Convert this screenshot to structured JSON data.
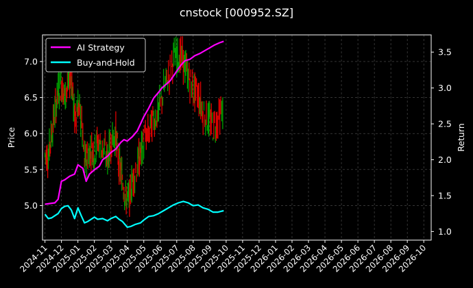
{
  "chart_data": {
    "type": "line",
    "title": "cnstock [000952.SZ]",
    "ylabel_left": "Price",
    "ylabel_right": "Return",
    "x_tick_labels": [
      "2024-11",
      "2024-12",
      "2025-01",
      "2025-02",
      "2025-03",
      "2025-04",
      "2025-05",
      "2025-06",
      "2025-07",
      "2025-08",
      "2025-09",
      "2025-10",
      "2025-11",
      "2025-12",
      "2026-01",
      "2026-02",
      "2026-03",
      "2026-04",
      "2026-05",
      "2026-06",
      "2026-07",
      "2026-08",
      "2026-09",
      "2026-10"
    ],
    "y_left_ticks": [
      "5.0",
      "5.5",
      "6.0",
      "6.5",
      "7.0"
    ],
    "y_left_lim": [
      4.52,
      7.37
    ],
    "y_right_ticks": [
      "1.0",
      "1.5",
      "2.0",
      "2.5",
      "3.0",
      "3.5"
    ],
    "y_right_lim": [
      0.88,
      3.74
    ],
    "x_lim_months": [
      -0.15,
      23.45
    ],
    "grid": true,
    "legend_position": "top-left",
    "series": [
      {
        "name": "AI Strategy",
        "axis": "right",
        "color": "#ff00ff",
        "points": [
          [
            0,
            1.38
          ],
          [
            0.3,
            1.39
          ],
          [
            0.6,
            1.4
          ],
          [
            0.8,
            1.45
          ],
          [
            1.0,
            1.7
          ],
          [
            1.2,
            1.72
          ],
          [
            1.5,
            1.77
          ],
          [
            1.8,
            1.8
          ],
          [
            2.0,
            1.93
          ],
          [
            2.3,
            1.88
          ],
          [
            2.5,
            1.7
          ],
          [
            2.7,
            1.8
          ],
          [
            3.0,
            1.86
          ],
          [
            3.3,
            1.91
          ],
          [
            3.5,
            2.0
          ],
          [
            3.8,
            2.05
          ],
          [
            4.0,
            2.1
          ],
          [
            4.3,
            2.15
          ],
          [
            4.6,
            2.24
          ],
          [
            4.8,
            2.28
          ],
          [
            5.0,
            2.26
          ],
          [
            5.3,
            2.32
          ],
          [
            5.6,
            2.4
          ],
          [
            5.8,
            2.5
          ],
          [
            6.0,
            2.6
          ],
          [
            6.3,
            2.72
          ],
          [
            6.6,
            2.86
          ],
          [
            6.9,
            2.94
          ],
          [
            7.1,
            3.0
          ],
          [
            7.4,
            3.06
          ],
          [
            7.6,
            3.1
          ],
          [
            7.9,
            3.2
          ],
          [
            8.1,
            3.27
          ],
          [
            8.3,
            3.33
          ],
          [
            8.5,
            3.38
          ],
          [
            8.8,
            3.4
          ],
          [
            9.1,
            3.45
          ],
          [
            9.4,
            3.48
          ],
          [
            9.7,
            3.52
          ],
          [
            10.0,
            3.56
          ],
          [
            10.3,
            3.6
          ],
          [
            10.6,
            3.63
          ],
          [
            10.85,
            3.65
          ]
        ]
      },
      {
        "name": "Buy-and-Hold",
        "axis": "right",
        "color": "#00ffff",
        "points": [
          [
            0,
            1.24
          ],
          [
            0.2,
            1.18
          ],
          [
            0.4,
            1.19
          ],
          [
            0.6,
            1.22
          ],
          [
            0.8,
            1.25
          ],
          [
            1.0,
            1.32
          ],
          [
            1.2,
            1.35
          ],
          [
            1.4,
            1.36
          ],
          [
            1.6,
            1.3
          ],
          [
            1.8,
            1.18
          ],
          [
            2.0,
            1.33
          ],
          [
            2.2,
            1.22
          ],
          [
            2.4,
            1.12
          ],
          [
            2.6,
            1.14
          ],
          [
            2.8,
            1.17
          ],
          [
            3.0,
            1.2
          ],
          [
            3.2,
            1.17
          ],
          [
            3.5,
            1.18
          ],
          [
            3.8,
            1.15
          ],
          [
            4.0,
            1.18
          ],
          [
            4.3,
            1.21
          ],
          [
            4.5,
            1.17
          ],
          [
            4.7,
            1.14
          ],
          [
            5.0,
            1.06
          ],
          [
            5.2,
            1.07
          ],
          [
            5.5,
            1.1
          ],
          [
            5.8,
            1.12
          ],
          [
            6.0,
            1.16
          ],
          [
            6.3,
            1.21
          ],
          [
            6.6,
            1.22
          ],
          [
            6.9,
            1.25
          ],
          [
            7.2,
            1.29
          ],
          [
            7.5,
            1.33
          ],
          [
            7.8,
            1.37
          ],
          [
            8.1,
            1.4
          ],
          [
            8.4,
            1.42
          ],
          [
            8.7,
            1.4
          ],
          [
            9.0,
            1.36
          ],
          [
            9.3,
            1.37
          ],
          [
            9.6,
            1.33
          ],
          [
            9.9,
            1.31
          ],
          [
            10.2,
            1.27
          ],
          [
            10.5,
            1.27
          ],
          [
            10.85,
            1.29
          ]
        ]
      }
    ],
    "price_series": {
      "name": "Price",
      "axis": "left",
      "color_up": "#00a000",
      "color_down": "#e00000",
      "points": [
        [
          0,
          5.7
        ],
        [
          0.2,
          5.7
        ],
        [
          0.4,
          6.0
        ],
        [
          0.6,
          6.3
        ],
        [
          0.8,
          6.6
        ],
        [
          1.0,
          6.7
        ],
        [
          1.2,
          6.5
        ],
        [
          1.4,
          6.7
        ],
        [
          1.6,
          6.8
        ],
        [
          1.8,
          6.2
        ],
        [
          2.0,
          6.4
        ],
        [
          2.2,
          6.2
        ],
        [
          2.4,
          5.6
        ],
        [
          2.6,
          5.7
        ],
        [
          2.8,
          5.8
        ],
        [
          3.0,
          5.75
        ],
        [
          3.2,
          5.9
        ],
        [
          3.5,
          5.8
        ],
        [
          3.8,
          5.65
        ],
        [
          4.0,
          5.9
        ],
        [
          4.3,
          6.0
        ],
        [
          4.5,
          5.55
        ],
        [
          4.7,
          5.4
        ],
        [
          4.9,
          5.1
        ],
        [
          5.1,
          5.1
        ],
        [
          5.3,
          5.35
        ],
        [
          5.6,
          5.55
        ],
        [
          5.8,
          5.7
        ],
        [
          6.0,
          5.9
        ],
        [
          6.3,
          6.0
        ],
        [
          6.6,
          6.2
        ],
        [
          6.9,
          6.3
        ],
        [
          7.2,
          6.6
        ],
        [
          7.5,
          6.8
        ],
        [
          7.8,
          7.05
        ],
        [
          8.1,
          7.1
        ],
        [
          8.4,
          7.0
        ],
        [
          8.7,
          6.8
        ],
        [
          9.0,
          6.6
        ],
        [
          9.3,
          6.55
        ],
        [
          9.6,
          6.3
        ],
        [
          9.9,
          6.2
        ],
        [
          10.2,
          6.1
        ],
        [
          10.5,
          6.2
        ],
        [
          10.85,
          6.35
        ]
      ]
    }
  }
}
